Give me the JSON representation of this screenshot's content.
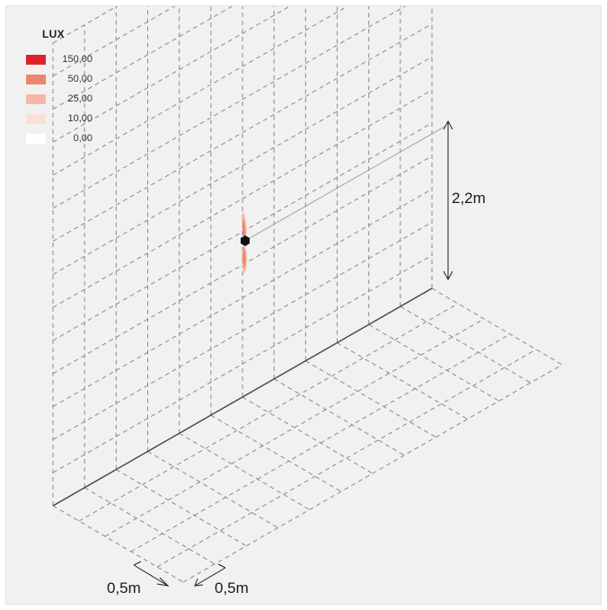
{
  "legend": {
    "title": "LUX",
    "items": [
      {
        "value": "150,00",
        "color": "#e0202a"
      },
      {
        "value": "50,00",
        "color": "#ec8570"
      },
      {
        "value": "25,00",
        "color": "#f3b9a6"
      },
      {
        "value": "10,00",
        "color": "#f9e1da"
      },
      {
        "value": "0,00",
        "color": "#ffffff"
      }
    ]
  },
  "dimensions": {
    "height_label": "2,2m",
    "grid_spacing_left": "0,5m",
    "grid_spacing_right": "0,5m"
  },
  "colors": {
    "background": "#f1f1f1",
    "grid_line": "#8a8a8a",
    "base_line": "#444444",
    "fixture": "#111111"
  }
}
